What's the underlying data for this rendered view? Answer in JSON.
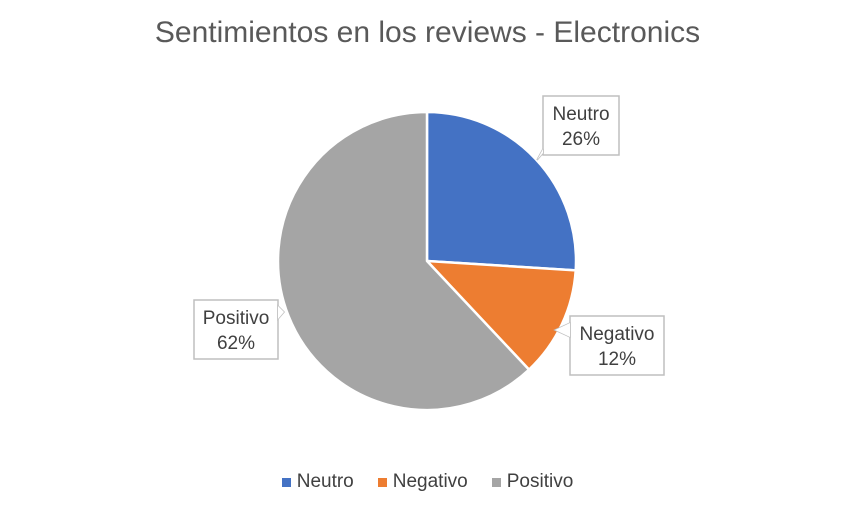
{
  "chart_data": {
    "type": "pie",
    "title": "Sentimientos en los reviews - Electronics",
    "slices": [
      {
        "label": "Neutro",
        "value": 26,
        "value_label": "26%",
        "color": "#4472C4"
      },
      {
        "label": "Negativo",
        "value": 12,
        "value_label": "12%",
        "color": "#ED7D31"
      },
      {
        "label": "Positivo",
        "value": 62,
        "value_label": "62%",
        "color": "#A5A5A5"
      }
    ],
    "legend": {
      "placement": "bottom",
      "entries": [
        "Neutro",
        "Negativo",
        "Positivo"
      ]
    },
    "data_labels": "callout"
  }
}
